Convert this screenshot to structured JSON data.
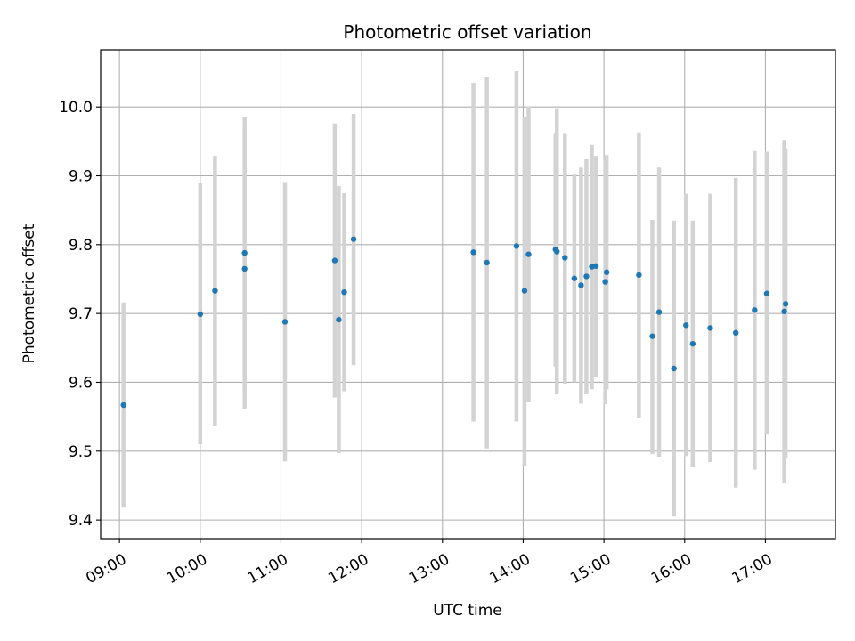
{
  "chart_data": {
    "type": "scatter",
    "title": "Photometric offset variation",
    "xlabel": "UTC time",
    "ylabel": "Photometric offset",
    "grid": true,
    "xlim": [
      "08:46",
      "17:52"
    ],
    "ylim": [
      9.373,
      10.083
    ],
    "xticks": [
      "09:00",
      "10:00",
      "11:00",
      "12:00",
      "13:00",
      "14:00",
      "15:00",
      "16:00",
      "17:00"
    ],
    "yticks": [
      "9.4",
      "9.5",
      "9.6",
      "9.7",
      "9.8",
      "9.9",
      "10.0"
    ],
    "colors": {
      "point": "#1f77b4",
      "errorbar": "#d3d3d3",
      "grid": "#b0b0b0"
    },
    "series": [
      {
        "points": [
          {
            "x": "09:03",
            "y": 9.567,
            "ylow": 9.418,
            "yhigh": 9.716
          },
          {
            "x": "10:00",
            "y": 9.699,
            "ylow": 9.51,
            "yhigh": 9.889
          },
          {
            "x": "10:11",
            "y": 9.733,
            "ylow": 9.536,
            "yhigh": 9.929
          },
          {
            "x": "10:33",
            "y": 9.765,
            "ylow": 9.562,
            "yhigh": 9.968
          },
          {
            "x": "10:33",
            "y": 9.788,
            "ylow": 9.59,
            "yhigh": 9.986
          },
          {
            "x": "11:03",
            "y": 9.688,
            "ylow": 9.485,
            "yhigh": 9.891
          },
          {
            "x": "11:40",
            "y": 9.777,
            "ylow": 9.578,
            "yhigh": 9.976
          },
          {
            "x": "11:43",
            "y": 9.691,
            "ylow": 9.497,
            "yhigh": 9.885
          },
          {
            "x": "11:47",
            "y": 9.731,
            "ylow": 9.587,
            "yhigh": 9.875
          },
          {
            "x": "11:54",
            "y": 9.808,
            "ylow": 9.625,
            "yhigh": 9.99
          },
          {
            "x": "13:23",
            "y": 9.789,
            "ylow": 9.543,
            "yhigh": 10.035
          },
          {
            "x": "13:33",
            "y": 9.774,
            "ylow": 9.504,
            "yhigh": 10.044
          },
          {
            "x": "13:55",
            "y": 9.798,
            "ylow": 9.543,
            "yhigh": 10.052
          },
          {
            "x": "14:01",
            "y": 9.733,
            "ylow": 9.479,
            "yhigh": 9.986
          },
          {
            "x": "14:04",
            "y": 9.786,
            "ylow": 9.572,
            "yhigh": 10.001
          },
          {
            "x": "14:24",
            "y": 9.793,
            "ylow": 9.623,
            "yhigh": 9.962
          },
          {
            "x": "14:25",
            "y": 9.79,
            "ylow": 9.583,
            "yhigh": 9.998
          },
          {
            "x": "14:31",
            "y": 9.781,
            "ylow": 9.598,
            "yhigh": 9.962
          },
          {
            "x": "14:38",
            "y": 9.751,
            "ylow": 9.6,
            "yhigh": 9.902
          },
          {
            "x": "14:43",
            "y": 9.741,
            "ylow": 9.569,
            "yhigh": 9.912
          },
          {
            "x": "14:47",
            "y": 9.754,
            "ylow": 9.583,
            "yhigh": 9.924
          },
          {
            "x": "14:51",
            "y": 9.768,
            "ylow": 9.59,
            "yhigh": 9.945
          },
          {
            "x": "14:54",
            "y": 9.769,
            "ylow": 9.608,
            "yhigh": 9.929
          },
          {
            "x": "15:01",
            "y": 9.746,
            "ylow": 9.568,
            "yhigh": 9.923
          },
          {
            "x": "15:02",
            "y": 9.76,
            "ylow": 9.59,
            "yhigh": 9.93
          },
          {
            "x": "15:26",
            "y": 9.756,
            "ylow": 9.549,
            "yhigh": 9.963
          },
          {
            "x": "15:36",
            "y": 9.667,
            "ylow": 9.496,
            "yhigh": 9.836
          },
          {
            "x": "15:41",
            "y": 9.702,
            "ylow": 9.492,
            "yhigh": 9.912
          },
          {
            "x": "15:52",
            "y": 9.62,
            "ylow": 9.405,
            "yhigh": 9.835
          },
          {
            "x": "16:01",
            "y": 9.683,
            "ylow": 9.493,
            "yhigh": 9.874
          },
          {
            "x": "16:06",
            "y": 9.656,
            "ylow": 9.477,
            "yhigh": 9.835
          },
          {
            "x": "16:19",
            "y": 9.679,
            "ylow": 9.484,
            "yhigh": 9.874
          },
          {
            "x": "16:38",
            "y": 9.672,
            "ylow": 9.447,
            "yhigh": 9.897
          },
          {
            "x": "16:52",
            "y": 9.705,
            "ylow": 9.473,
            "yhigh": 9.936
          },
          {
            "x": "17:01",
            "y": 9.729,
            "ylow": 9.524,
            "yhigh": 9.935
          },
          {
            "x": "17:14",
            "y": 9.703,
            "ylow": 9.454,
            "yhigh": 9.952
          },
          {
            "x": "17:15",
            "y": 9.714,
            "ylow": 9.489,
            "yhigh": 9.94
          }
        ]
      }
    ]
  }
}
